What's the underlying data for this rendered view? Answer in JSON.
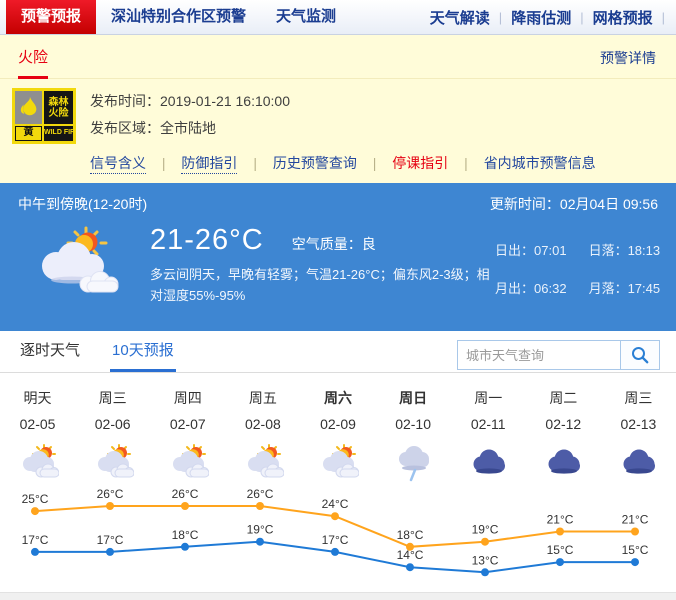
{
  "nav": {
    "tabs": [
      {
        "label": "预警预报",
        "active": true
      },
      {
        "label": "深汕特别合作区预警",
        "active": false
      },
      {
        "label": "天气监测",
        "active": false
      }
    ],
    "links": [
      "天气解读",
      "降雨估测",
      "网格预报"
    ]
  },
  "warning": {
    "tab": "火险",
    "details_link": "预警详情",
    "icon": {
      "name": "forest-fire-yellow-warning",
      "line1": "森林",
      "line2": "火险",
      "level": "黄",
      "en": "WILD FIRE"
    },
    "publish_time_label": "发布时间：",
    "publish_time": "2019-01-21 16:10:00",
    "publish_area_label": "发布区域：",
    "publish_area": "全市陆地",
    "links": [
      {
        "label": "信号含义",
        "style": "dotted"
      },
      {
        "label": "防御指引",
        "style": "dotted"
      },
      {
        "label": "历史预警查询",
        "style": "plain"
      },
      {
        "label": "停课指引",
        "style": "red"
      },
      {
        "label": "省内城市预警信息",
        "style": "plain"
      }
    ]
  },
  "current": {
    "period_title": "中午到傍晚(12-20时)",
    "update_time_label": "更新时间：",
    "update_time": "02月04日 09:56",
    "temp_range": "21-26°C",
    "air_quality_label": "空气质量：",
    "air_quality": "良",
    "description": "多云间阴天，早晚有轻雾；气温21-26°C；偏东风2-3级；相对湿度55%-95%",
    "sunrise_label": "日出：",
    "sunrise": "07:01",
    "sunset_label": "日落：",
    "sunset": "18:13",
    "moonrise_label": "月出：",
    "moonrise": "06:32",
    "moonset_label": "月落：",
    "moonset": "17:45"
  },
  "forecast": {
    "tabs": [
      {
        "label": "逐时天气",
        "active": false
      },
      {
        "label": "10天预报",
        "active": true
      }
    ],
    "search_placeholder": "城市天气查询",
    "days": [
      {
        "label": "明天",
        "date": "02-05",
        "icon": "cloudy-sun",
        "bold": false
      },
      {
        "label": "周三",
        "date": "02-06",
        "icon": "cloudy-sun",
        "bold": false
      },
      {
        "label": "周四",
        "date": "02-07",
        "icon": "cloudy-sun",
        "bold": false
      },
      {
        "label": "周五",
        "date": "02-08",
        "icon": "cloudy-sun",
        "bold": false
      },
      {
        "label": "周六",
        "date": "02-09",
        "icon": "cloudy-sun",
        "bold": true
      },
      {
        "label": "周日",
        "date": "02-10",
        "icon": "rain",
        "bold": true
      },
      {
        "label": "周一",
        "date": "02-11",
        "icon": "cloud",
        "bold": false
      },
      {
        "label": "周二",
        "date": "02-12",
        "icon": "cloud",
        "bold": false
      },
      {
        "label": "周三",
        "date": "02-13",
        "icon": "cloud",
        "bold": false
      }
    ]
  },
  "chart_data": {
    "type": "line",
    "categories": [
      "02-05",
      "02-06",
      "02-07",
      "02-08",
      "02-09",
      "02-10",
      "02-11",
      "02-12",
      "02-13"
    ],
    "series": [
      {
        "name": "high",
        "color": "#ffa41d",
        "values": [
          25,
          26,
          26,
          26,
          24,
          18,
          19,
          21,
          21
        ]
      },
      {
        "name": "low",
        "color": "#1f7ad6",
        "values": [
          17,
          17,
          18,
          19,
          17,
          14,
          13,
          15,
          15
        ]
      }
    ],
    "unit": "°C",
    "ylim": [
      12,
      27
    ],
    "grid": false,
    "legend": "none"
  },
  "colors": {
    "accent_red": "#e60012",
    "navy": "#1b3d91",
    "blue_panel": "#3e86d2",
    "link_blue": "#23479e",
    "active_tab_blue": "#2a6fd2",
    "yellow_bg": "#fffcd9",
    "high_line": "#ffa41d",
    "low_line": "#1f7ad6"
  }
}
